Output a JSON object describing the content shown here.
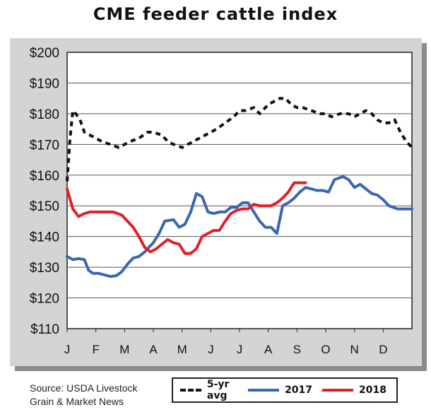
{
  "chart_data": {
    "type": "line",
    "title": "CME feeder cattle index",
    "xlabel": "",
    "ylabel": "",
    "ylim": [
      110,
      200
    ],
    "yticks": [
      "$110",
      "$120",
      "$130",
      "$140",
      "$150",
      "$160",
      "$170",
      "$180",
      "$190",
      "$200"
    ],
    "xticks": [
      "J",
      "F",
      "M",
      "A",
      "M",
      "J",
      "J",
      "A",
      "S",
      "O",
      "N",
      "D"
    ],
    "grid": "horizontal",
    "legend_placement": "bottom",
    "series": [
      {
        "name": "5-yr avg",
        "color": "#111111",
        "style": "dashed",
        "x": [
          0.0,
          0.1,
          0.2,
          0.3,
          0.45,
          0.6,
          0.8,
          1.0,
          1.2,
          1.5,
          1.8,
          2.0,
          2.2,
          2.5,
          2.8,
          3.0,
          3.3,
          3.5,
          3.7,
          4.0,
          4.2,
          4.4,
          4.6,
          4.8,
          5.0,
          5.2,
          5.5,
          5.8,
          6.0,
          6.2,
          6.5,
          6.7,
          7.0,
          7.2,
          7.4,
          7.6,
          7.8,
          8.0,
          8.2,
          8.5,
          8.8,
          9.0,
          9.2,
          9.5,
          9.8,
          10.0,
          10.2,
          10.4,
          10.6,
          10.8,
          11.0,
          11.2,
          11.4,
          11.6,
          11.8,
          12.0
        ],
        "y": [
          158,
          172,
          181,
          180,
          178,
          174,
          173,
          172,
          171,
          170,
          169,
          170,
          171,
          172,
          174,
          174,
          173,
          171,
          170,
          169,
          170,
          171,
          172,
          173,
          174,
          175,
          177,
          179,
          181,
          181,
          182,
          180,
          183,
          184,
          185,
          185,
          183,
          182,
          182,
          181,
          180,
          180,
          179,
          180,
          180,
          179,
          180,
          181,
          180,
          178,
          177,
          177,
          178,
          174,
          171,
          169
        ]
      },
      {
        "name": "2017",
        "color": "#3b66b1",
        "style": "solid",
        "x": [
          0.0,
          0.2,
          0.4,
          0.6,
          0.75,
          0.9,
          1.1,
          1.3,
          1.5,
          1.7,
          1.9,
          2.1,
          2.3,
          2.5,
          2.7,
          2.9,
          3.0,
          3.2,
          3.4,
          3.7,
          3.9,
          4.1,
          4.3,
          4.5,
          4.7,
          4.9,
          5.1,
          5.3,
          5.5,
          5.7,
          5.9,
          6.1,
          6.3,
          6.5,
          6.7,
          6.9,
          7.1,
          7.3,
          7.5,
          7.7,
          7.9,
          8.1,
          8.3,
          8.5,
          8.7,
          8.9,
          9.1,
          9.3,
          9.6,
          9.8,
          10.0,
          10.2,
          10.4,
          10.6,
          10.8,
          11.0,
          11.2,
          11.5,
          11.8,
          12.0
        ],
        "y": [
          133.5,
          132.5,
          132.8,
          132.5,
          129,
          128,
          128,
          127.5,
          127,
          127.2,
          128.5,
          131,
          133,
          133.5,
          135,
          137,
          138,
          141,
          145,
          145.5,
          143,
          144,
          148,
          154,
          153,
          148,
          147.5,
          148,
          148,
          149.5,
          149.5,
          151,
          151,
          148,
          145,
          143,
          143,
          141,
          150,
          151,
          152.5,
          154.5,
          156,
          155.5,
          155,
          155,
          154.5,
          158.5,
          159.5,
          158.5,
          156,
          157,
          155.5,
          154,
          153.5,
          152,
          150,
          149,
          149,
          149
        ]
      },
      {
        "name": "2018",
        "color": "#e41e26",
        "style": "solid",
        "x": [
          0.0,
          0.2,
          0.4,
          0.6,
          0.8,
          1.0,
          1.3,
          1.6,
          1.9,
          2.1,
          2.3,
          2.5,
          2.7,
          2.9,
          3.1,
          3.3,
          3.5,
          3.7,
          3.9,
          4.1,
          4.3,
          4.5,
          4.7,
          4.9,
          5.1,
          5.3,
          5.5,
          5.7,
          5.9,
          6.1,
          6.3,
          6.5,
          6.7,
          6.9,
          7.1,
          7.3,
          7.5,
          7.7,
          7.9,
          8.1,
          8.3
        ],
        "y": [
          155.5,
          149,
          146.5,
          147.5,
          148,
          148,
          148,
          148,
          147,
          145,
          143,
          140,
          136.5,
          135,
          136,
          137.5,
          139,
          138,
          137.5,
          134.5,
          134.5,
          136,
          140,
          141,
          142,
          142,
          145,
          147.5,
          148.5,
          149,
          149,
          150.5,
          150,
          150,
          150,
          151,
          152.5,
          154.5,
          157.5,
          157.5,
          157.5
        ]
      }
    ]
  },
  "source": {
    "line1": "Source: USDA Livestock",
    "line2": "Grain & Market News"
  },
  "legend": {
    "items": [
      "5-yr avg",
      "2017",
      "2018"
    ]
  }
}
